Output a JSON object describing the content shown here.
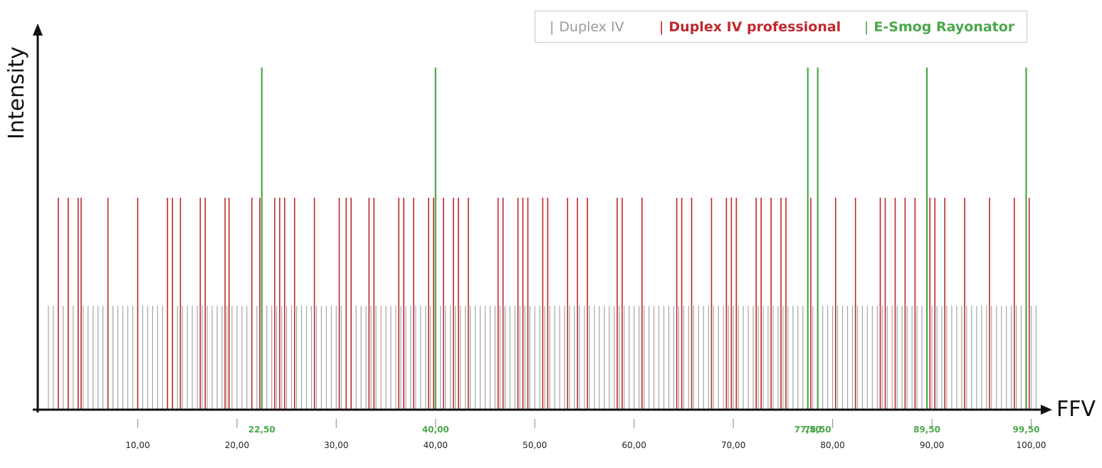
{
  "legend": {
    "duplex": "Duplex IV",
    "duplex_pro": "Duplex IV professional",
    "esmog": "E-Smog Rayonator",
    "mark": "|"
  },
  "axes": {
    "ylabel": "Intensity",
    "xlabel": "FFV"
  },
  "colors": {
    "grey": "#a6a6a6",
    "red": "#c0282d",
    "green": "#4aa84a",
    "axis": "#111111"
  },
  "chart_data": {
    "type": "bar",
    "title": "",
    "xlabel": "FFV",
    "ylabel": "Intensity",
    "xlim": [
      0,
      101
    ],
    "x_ticks": [
      10,
      20,
      30,
      40,
      50,
      60,
      70,
      80,
      90,
      100
    ],
    "x_tick_labels": [
      "10,00",
      "20,00",
      "30,00",
      "40,00",
      "50,00",
      "60,00",
      "70,00",
      "80,00",
      "90,00",
      "100,00"
    ],
    "grid": false,
    "legend_position": "top-right",
    "series": [
      {
        "name": "Duplex IV",
        "intensity": 1,
        "x": [
          1.0,
          1.5,
          2.0,
          2.5,
          3.0,
          3.5,
          4.0,
          4.5,
          5.0,
          5.5,
          6.0,
          6.5,
          7.0,
          7.5,
          8.0,
          8.5,
          9.0,
          9.5,
          10.0,
          10.5,
          11.0,
          11.5,
          12.0,
          12.5,
          13.0,
          13.5,
          14.0,
          14.5,
          15.0,
          15.5,
          16.0,
          16.5,
          17.0,
          17.5,
          18.0,
          18.5,
          19.0,
          19.5,
          20.0,
          20.5,
          21.0,
          21.5,
          22.0,
          22.5,
          23.0,
          23.5,
          24.0,
          24.5,
          25.0,
          25.5,
          26.0,
          26.5,
          27.0,
          27.5,
          28.0,
          28.5,
          29.0,
          29.5,
          30.0,
          30.5,
          31.0,
          31.5,
          32.0,
          32.5,
          33.0,
          33.5,
          34.0,
          34.5,
          35.0,
          35.5,
          36.0,
          36.5,
          37.0,
          37.5,
          38.0,
          38.5,
          39.0,
          39.5,
          40.0,
          40.5,
          41.0,
          41.5,
          42.0,
          42.5,
          43.0,
          43.5,
          44.0,
          44.5,
          45.0,
          45.5,
          46.0,
          46.5,
          47.0,
          47.5,
          48.0,
          48.5,
          49.0,
          49.5,
          50.0,
          50.5,
          51.0,
          51.5,
          52.0,
          52.5,
          53.0,
          53.5,
          54.0,
          54.5,
          55.0,
          55.5,
          56.0,
          56.5,
          57.0,
          57.5,
          58.0,
          58.5,
          59.0,
          59.5,
          60.0,
          60.5,
          61.0,
          61.5,
          62.0,
          62.5,
          63.0,
          63.5,
          64.0,
          64.5,
          65.0,
          65.5,
          66.0,
          66.5,
          67.0,
          67.5,
          68.0,
          68.5,
          69.0,
          69.5,
          70.0,
          70.5,
          71.0,
          71.5,
          72.0,
          72.5,
          73.0,
          73.5,
          74.0,
          74.5,
          75.0,
          75.5,
          76.0,
          76.5,
          77.0,
          77.5,
          78.0,
          78.5,
          79.0,
          79.5,
          80.0,
          80.5,
          81.0,
          81.5,
          82.0,
          82.5,
          83.0,
          83.5,
          84.0,
          84.5,
          85.0,
          85.5,
          86.0,
          86.5,
          87.0,
          87.5,
          88.0,
          88.5,
          89.0,
          89.5,
          90.0,
          90.5,
          91.0,
          91.5,
          92.0,
          92.5,
          93.0,
          93.5,
          94.0,
          94.5,
          95.0,
          95.5,
          96.0,
          96.5,
          97.0,
          97.5,
          98.0,
          98.5,
          99.0,
          99.5,
          100.0,
          100.5
        ]
      },
      {
        "name": "Duplex IV professional",
        "intensity": 2,
        "x": [
          2.0,
          3.0,
          4.0,
          4.3,
          7.0,
          10.0,
          13.0,
          13.5,
          14.3,
          16.3,
          16.8,
          18.8,
          19.2,
          21.5,
          22.3,
          23.8,
          24.3,
          24.8,
          25.8,
          27.8,
          30.3,
          31.0,
          31.5,
          33.3,
          33.8,
          36.3,
          36.8,
          37.8,
          39.3,
          39.8,
          40.8,
          41.8,
          42.3,
          43.3,
          46.3,
          46.8,
          48.3,
          48.8,
          49.3,
          50.8,
          51.3,
          53.3,
          54.3,
          55.3,
          58.3,
          58.8,
          60.8,
          64.3,
          64.8,
          65.8,
          67.8,
          69.3,
          69.8,
          70.3,
          72.3,
          72.8,
          73.8,
          74.8,
          75.3,
          77.8,
          80.3,
          82.3,
          84.8,
          85.3,
          86.3,
          87.3,
          88.3,
          89.8,
          90.3,
          91.3,
          93.3,
          95.8,
          98.3,
          99.8
        ]
      },
      {
        "name": "E-Smog Rayonator",
        "intensity": 3,
        "x": [
          22.5,
          40.0,
          77.5,
          78.5,
          89.5,
          99.5
        ],
        "labels": [
          "22,50",
          "40,00",
          "77,50",
          "78,50",
          "89,50",
          "99,50"
        ]
      }
    ]
  }
}
